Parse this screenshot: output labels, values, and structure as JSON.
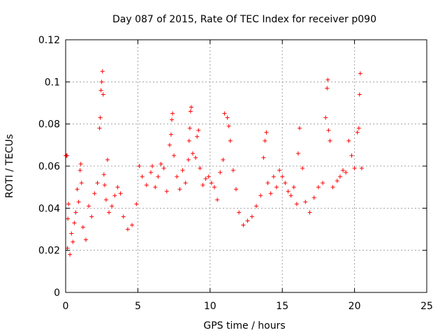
{
  "chart_data": {
    "type": "scatter",
    "title": "Day 087 of 2015, Rate Of TEC Index for receiver p090",
    "xlabel": "GPS time / hours",
    "ylabel": "ROTI / TECUs",
    "xlim": [
      0,
      25
    ],
    "ylim": [
      0,
      0.12
    ],
    "x_ticks": [
      0,
      5,
      10,
      15,
      20,
      25
    ],
    "x_tick_labels": [
      "0",
      "5",
      "10",
      "15",
      "20",
      "25"
    ],
    "y_ticks": [
      0,
      0.02,
      0.04,
      0.06,
      0.08,
      0.1,
      0.12
    ],
    "y_tick_labels": [
      "0",
      "0.02",
      "0.04",
      "0.06",
      "0.08",
      "0.1",
      "0.12"
    ],
    "grid": true,
    "marker": "plus",
    "color": "#ff0000",
    "series": [
      {
        "points": [
          [
            0.0,
            0.065
          ],
          [
            0.05,
            0.065
          ],
          [
            0.1,
            0.065
          ],
          [
            0.12,
            0.021
          ],
          [
            0.15,
            0.035
          ],
          [
            0.2,
            0.042
          ],
          [
            0.3,
            0.018
          ],
          [
            0.4,
            0.028
          ],
          [
            0.5,
            0.024
          ],
          [
            0.6,
            0.033
          ],
          [
            0.7,
            0.038
          ],
          [
            0.8,
            0.049
          ],
          [
            0.9,
            0.043
          ],
          [
            1.0,
            0.058
          ],
          [
            1.05,
            0.061
          ],
          [
            1.1,
            0.052
          ],
          [
            1.2,
            0.031
          ],
          [
            1.4,
            0.025
          ],
          [
            1.6,
            0.041
          ],
          [
            1.8,
            0.036
          ],
          [
            2.0,
            0.047
          ],
          [
            2.2,
            0.052
          ],
          [
            2.35,
            0.078
          ],
          [
            2.4,
            0.083
          ],
          [
            2.45,
            0.096
          ],
          [
            2.5,
            0.1
          ],
          [
            2.55,
            0.105
          ],
          [
            2.6,
            0.094
          ],
          [
            2.65,
            0.056
          ],
          [
            2.7,
            0.051
          ],
          [
            2.8,
            0.044
          ],
          [
            2.9,
            0.063
          ],
          [
            3.0,
            0.038
          ],
          [
            3.2,
            0.041
          ],
          [
            3.4,
            0.046
          ],
          [
            3.6,
            0.05
          ],
          [
            3.8,
            0.047
          ],
          [
            4.0,
            0.036
          ],
          [
            4.3,
            0.03
          ],
          [
            4.6,
            0.032
          ],
          [
            4.9,
            0.042
          ],
          [
            5.1,
            0.06
          ],
          [
            5.3,
            0.055
          ],
          [
            5.6,
            0.051
          ],
          [
            5.9,
            0.057
          ],
          [
            6.0,
            0.06
          ],
          [
            6.2,
            0.05
          ],
          [
            6.4,
            0.055
          ],
          [
            6.6,
            0.061
          ],
          [
            6.8,
            0.059
          ],
          [
            7.0,
            0.048
          ],
          [
            7.2,
            0.07
          ],
          [
            7.3,
            0.075
          ],
          [
            7.35,
            0.082
          ],
          [
            7.4,
            0.085
          ],
          [
            7.5,
            0.065
          ],
          [
            7.7,
            0.055
          ],
          [
            7.9,
            0.049
          ],
          [
            8.1,
            0.058
          ],
          [
            8.3,
            0.052
          ],
          [
            8.5,
            0.063
          ],
          [
            8.55,
            0.072
          ],
          [
            8.6,
            0.078
          ],
          [
            8.65,
            0.086
          ],
          [
            8.7,
            0.088
          ],
          [
            8.8,
            0.066
          ],
          [
            9.0,
            0.064
          ],
          [
            9.1,
            0.074
          ],
          [
            9.2,
            0.077
          ],
          [
            9.3,
            0.059
          ],
          [
            9.5,
            0.051
          ],
          [
            9.7,
            0.054
          ],
          [
            9.9,
            0.055
          ],
          [
            10.1,
            0.052
          ],
          [
            10.3,
            0.05
          ],
          [
            10.5,
            0.044
          ],
          [
            10.7,
            0.057
          ],
          [
            10.9,
            0.063
          ],
          [
            11.0,
            0.085
          ],
          [
            11.2,
            0.083
          ],
          [
            11.3,
            0.079
          ],
          [
            11.4,
            0.072
          ],
          [
            11.6,
            0.058
          ],
          [
            11.8,
            0.049
          ],
          [
            12.0,
            0.038
          ],
          [
            12.3,
            0.032
          ],
          [
            12.6,
            0.034
          ],
          [
            12.9,
            0.036
          ],
          [
            13.2,
            0.041
          ],
          [
            13.5,
            0.046
          ],
          [
            13.7,
            0.064
          ],
          [
            13.8,
            0.072
          ],
          [
            13.9,
            0.076
          ],
          [
            14.0,
            0.052
          ],
          [
            14.2,
            0.047
          ],
          [
            14.4,
            0.055
          ],
          [
            14.6,
            0.05
          ],
          [
            14.8,
            0.058
          ],
          [
            15.0,
            0.055
          ],
          [
            15.2,
            0.052
          ],
          [
            15.4,
            0.048
          ],
          [
            15.6,
            0.046
          ],
          [
            15.8,
            0.05
          ],
          [
            16.0,
            0.042
          ],
          [
            16.1,
            0.066
          ],
          [
            16.2,
            0.078
          ],
          [
            16.4,
            0.059
          ],
          [
            16.6,
            0.043
          ],
          [
            16.9,
            0.038
          ],
          [
            17.2,
            0.045
          ],
          [
            17.5,
            0.05
          ],
          [
            17.8,
            0.052
          ],
          [
            18.0,
            0.083
          ],
          [
            18.1,
            0.097
          ],
          [
            18.15,
            0.101
          ],
          [
            18.2,
            0.077
          ],
          [
            18.3,
            0.072
          ],
          [
            18.5,
            0.05
          ],
          [
            18.8,
            0.053
          ],
          [
            19.0,
            0.055
          ],
          [
            19.2,
            0.058
          ],
          [
            19.4,
            0.057
          ],
          [
            19.6,
            0.072
          ],
          [
            19.8,
            0.065
          ],
          [
            20.0,
            0.059
          ],
          [
            20.2,
            0.076
          ],
          [
            20.3,
            0.078
          ],
          [
            20.35,
            0.094
          ],
          [
            20.4,
            0.104
          ],
          [
            20.5,
            0.059
          ]
        ]
      }
    ]
  }
}
